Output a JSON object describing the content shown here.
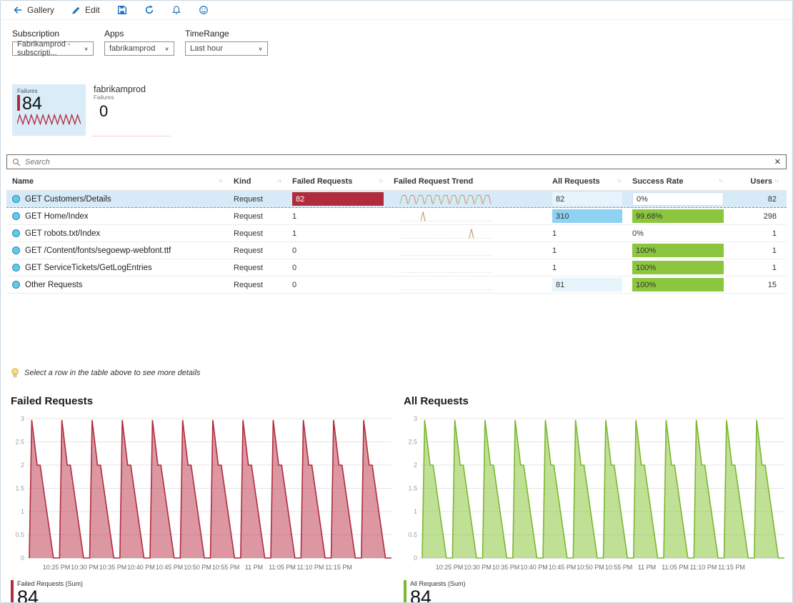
{
  "toolbar": {
    "gallery_label": "Gallery",
    "edit_label": "Edit",
    "icon_names": [
      "back-arrow",
      "edit-pencil",
      "save",
      "refresh",
      "notifications",
      "feedback-smiley"
    ],
    "accent_color": "#1a6fbf"
  },
  "filters": [
    {
      "label": "Subscription",
      "value": "Fabrikamprod - subscripti..."
    },
    {
      "label": "Apps",
      "value": "fabrikamprod"
    },
    {
      "label": "TimeRange",
      "value": "Last hour"
    }
  ],
  "tiles": {
    "failures_tile": {
      "label": "Failures",
      "value": "84",
      "accent": "#b0293c",
      "bg": "#d9ecf8",
      "sparkline_peaks": 11
    },
    "app_tile": {
      "title": "fabrikamprod",
      "label": "Failures",
      "value": "0"
    }
  },
  "search": {
    "placeholder": "Search",
    "clear_icon": "✕"
  },
  "icons": {
    "dropdown_chevron": "∨",
    "sort": "↑↓",
    "search": "magnifier",
    "hint": "lightbulb",
    "row": "globe"
  },
  "table": {
    "columns": [
      {
        "label": "Name",
        "sortable": true
      },
      {
        "label": "Kind",
        "sortable": true
      },
      {
        "label": "Failed Requests",
        "sortable": true
      },
      {
        "label": "Failed Request Trend",
        "sortable": false
      },
      {
        "label": "All Requests",
        "sortable": true
      },
      {
        "label": "Success Rate",
        "sortable": true
      },
      {
        "label": "Users",
        "sortable": true
      }
    ],
    "rows": [
      {
        "name": "GET Customers/Details",
        "kind": "Request",
        "failed_requests": "82",
        "failed_style": "bar-red",
        "trend": {
          "type": "wave",
          "cycles": 11
        },
        "all_requests": "82",
        "all_style": "tint",
        "success_rate": "0%",
        "success_style": "outline",
        "users": "82",
        "selected": true
      },
      {
        "name": "GET Home/Index",
        "kind": "Request",
        "failed_requests": "1",
        "failed_style": "none",
        "trend": {
          "type": "spike",
          "pos": 0.25
        },
        "all_requests": "310",
        "all_style": "bar",
        "success_rate": "99.68%",
        "success_style": "green",
        "users": "298",
        "selected": false
      },
      {
        "name": "GET robots.txt/Index",
        "kind": "Request",
        "failed_requests": "1",
        "failed_style": "none",
        "trend": {
          "type": "spike",
          "pos": 0.78
        },
        "all_requests": "1",
        "all_style": "none",
        "success_rate": "0%",
        "success_style": "none",
        "users": "1",
        "selected": false
      },
      {
        "name": "GET /Content/fonts/segoewp-webfont.ttf",
        "kind": "Request",
        "failed_requests": "0",
        "failed_style": "none",
        "trend": {
          "type": "flat"
        },
        "all_requests": "1",
        "all_style": "none",
        "success_rate": "100%",
        "success_style": "green",
        "users": "1",
        "selected": false
      },
      {
        "name": "GET ServiceTickets/GetLogEntries",
        "kind": "Request",
        "failed_requests": "0",
        "failed_style": "none",
        "trend": {
          "type": "flat"
        },
        "all_requests": "1",
        "all_style": "none",
        "success_rate": "100%",
        "success_style": "green",
        "users": "1",
        "selected": false
      },
      {
        "name": "Other Requests",
        "kind": "Request",
        "failed_requests": "0",
        "failed_style": "none",
        "trend": {
          "type": "flat"
        },
        "all_requests": "81",
        "all_style": "tint",
        "success_rate": "100%",
        "success_style": "green",
        "users": "15",
        "selected": false
      }
    ]
  },
  "hint": {
    "text": "Select a row in the table above to see more details"
  },
  "chart_data": [
    {
      "type": "area",
      "title": "Failed Requests",
      "legend": "Failed Requests (Sum)",
      "total": "84",
      "x_labels": [
        "10:25 PM",
        "10:30 PM",
        "10:35 PM",
        "10:40 PM",
        "10:45 PM",
        "10:50 PM",
        "10:55 PM",
        "11 PM",
        "11:05 PM",
        "11:10 PM",
        "11:15 PM"
      ],
      "ylim": [
        0,
        3
      ],
      "yticks": [
        0,
        0.5,
        1,
        1.5,
        2,
        2.5,
        3
      ],
      "cycles": 12,
      "cycle_points": [
        [
          0,
          0
        ],
        [
          0.08,
          2.97
        ],
        [
          0.26,
          2
        ],
        [
          0.36,
          2
        ],
        [
          0.8,
          0
        ],
        [
          0.97,
          0
        ]
      ],
      "line_color": "#b02c3e",
      "fill_color": "#bf4256",
      "grid": true,
      "legend_position": "bottom-left"
    },
    {
      "type": "area",
      "title": "All Requests",
      "legend": "All Requests (Sum)",
      "total": "84",
      "x_labels": [
        "10:25 PM",
        "10:30 PM",
        "10:35 PM",
        "10:40 PM",
        "10:45 PM",
        "10:50 PM",
        "10:55 PM",
        "11 PM",
        "11:05 PM",
        "11:10 PM",
        "11:15 PM"
      ],
      "ylim": [
        0,
        3
      ],
      "yticks": [
        0,
        0.5,
        1,
        1.5,
        2,
        2.5,
        3
      ],
      "cycles": 12,
      "cycle_points": [
        [
          0,
          0
        ],
        [
          0.08,
          2.97
        ],
        [
          0.26,
          2
        ],
        [
          0.36,
          2
        ],
        [
          0.8,
          0
        ],
        [
          0.97,
          0
        ]
      ],
      "line_color": "#7cb72e",
      "fill_color": "#8cc63f",
      "grid": true,
      "legend_position": "bottom-left"
    }
  ],
  "colors": {
    "selected_row_bg": "#d7eaf8",
    "failed_bar": "#b02c3c",
    "all_requests_bar": "#8ed1f2",
    "all_requests_tint": "#e7f4fc",
    "success_green": "#8cc63f",
    "trend_green": "#95cd5f",
    "trend_red": "#e4828f"
  }
}
